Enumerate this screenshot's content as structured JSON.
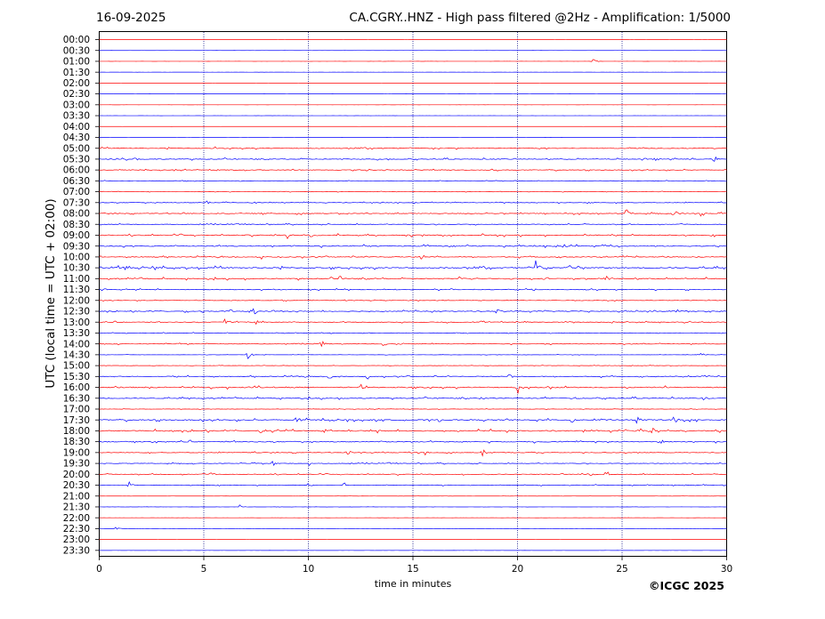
{
  "header": {
    "date": "16-09-2025",
    "title": "CA.CGRY..HNZ - High pass filtered @2Hz - Amplification: 1/5000"
  },
  "credit": "©ICGC 2025",
  "chart_data": {
    "type": "line",
    "title": "CA.CGRY..HNZ - High pass filtered @2Hz - Amplification: 1/5000",
    "xlabel": "time in minutes",
    "ylabel": "UTC (local time = UTC + 02:00)",
    "xlim": [
      0,
      30
    ],
    "xticks": [
      0,
      5,
      10,
      15,
      20,
      25,
      30
    ],
    "vertical_grid": [
      5,
      10,
      15,
      20,
      25
    ],
    "row_labels": [
      "00:00",
      "00:30",
      "01:00",
      "01:30",
      "02:00",
      "02:30",
      "03:00",
      "03:30",
      "04:00",
      "04:30",
      "05:00",
      "05:30",
      "06:00",
      "06:30",
      "07:00",
      "07:30",
      "08:00",
      "08:30",
      "09:00",
      "09:30",
      "10:00",
      "10:30",
      "11:00",
      "11:30",
      "12:00",
      "12:30",
      "13:00",
      "13:30",
      "14:00",
      "14:30",
      "15:00",
      "15:30",
      "16:00",
      "16:30",
      "17:00",
      "17:30",
      "18:00",
      "18:30",
      "19:00",
      "19:30",
      "20:00",
      "20:30",
      "21:00",
      "21:30",
      "22:00",
      "22:30",
      "23:00",
      "23:30"
    ],
    "trace_colors": [
      "#ff0000",
      "#0000ff"
    ],
    "noise_level": [
      0.02,
      0.02,
      0.03,
      0.02,
      0.02,
      0.02,
      0.02,
      0.02,
      0.02,
      0.02,
      0.35,
      0.35,
      0.3,
      0.15,
      0.15,
      0.25,
      0.35,
      0.25,
      0.45,
      0.45,
      0.35,
      0.55,
      0.45,
      0.3,
      0.2,
      0.35,
      0.3,
      0.2,
      0.25,
      0.1,
      0.15,
      0.35,
      0.5,
      0.4,
      0.15,
      0.5,
      0.5,
      0.45,
      0.3,
      0.25,
      0.3,
      0.25,
      0.05,
      0.05,
      0.04,
      0.04,
      0.02,
      0.02
    ],
    "events": [
      {
        "row": 2,
        "t": 23.6,
        "amp": 4
      },
      {
        "row": 10,
        "t": 5.5,
        "amp": 3
      },
      {
        "row": 11,
        "t": 1.7,
        "amp": 4
      },
      {
        "row": 11,
        "t": 26.5,
        "amp": 4
      },
      {
        "row": 11,
        "t": 29.4,
        "amp": 5
      },
      {
        "row": 12,
        "t": 12.8,
        "amp": 5
      },
      {
        "row": 13,
        "t": 4.6,
        "amp": 3
      },
      {
        "row": 15,
        "t": 5.1,
        "amp": 5
      },
      {
        "row": 15,
        "t": 23.3,
        "amp": 4
      },
      {
        "row": 16,
        "t": 25.2,
        "amp": 7
      },
      {
        "row": 16,
        "t": 27.5,
        "amp": 6
      },
      {
        "row": 16,
        "t": 28.8,
        "amp": 8
      },
      {
        "row": 18,
        "t": 9.0,
        "amp": 4
      },
      {
        "row": 19,
        "t": 16.8,
        "amp": 4
      },
      {
        "row": 19,
        "t": 22.2,
        "amp": 4
      },
      {
        "row": 19,
        "t": 24.0,
        "amp": 4
      },
      {
        "row": 20,
        "t": 7.7,
        "amp": 4
      },
      {
        "row": 20,
        "t": 15.4,
        "amp": 4
      },
      {
        "row": 21,
        "t": 0.9,
        "amp": 5
      },
      {
        "row": 21,
        "t": 20.9,
        "amp": 16
      },
      {
        "row": 21,
        "t": 22.4,
        "amp": 6
      },
      {
        "row": 21,
        "t": 23.1,
        "amp": 5
      },
      {
        "row": 22,
        "t": 11.5,
        "amp": 4
      },
      {
        "row": 22,
        "t": 17.2,
        "amp": 5
      },
      {
        "row": 22,
        "t": 24.2,
        "amp": 4
      },
      {
        "row": 23,
        "t": 20.7,
        "amp": 4
      },
      {
        "row": 25,
        "t": 6.3,
        "amp": 5
      },
      {
        "row": 25,
        "t": 7.4,
        "amp": 5
      },
      {
        "row": 25,
        "t": 19.0,
        "amp": 5
      },
      {
        "row": 25,
        "t": 27.6,
        "amp": 4
      },
      {
        "row": 26,
        "t": 6.0,
        "amp": 4
      },
      {
        "row": 26,
        "t": 7.5,
        "amp": 4
      },
      {
        "row": 26,
        "t": 18.3,
        "amp": 4
      },
      {
        "row": 26,
        "t": 24.5,
        "amp": 5
      },
      {
        "row": 28,
        "t": 10.6,
        "amp": 4
      },
      {
        "row": 28,
        "t": 13.6,
        "amp": 5
      },
      {
        "row": 29,
        "t": 7.1,
        "amp": 5
      },
      {
        "row": 29,
        "t": 28.7,
        "amp": 7
      },
      {
        "row": 31,
        "t": 11.0,
        "amp": 4
      },
      {
        "row": 31,
        "t": 12.8,
        "amp": 4
      },
      {
        "row": 31,
        "t": 19.6,
        "amp": 5
      },
      {
        "row": 32,
        "t": 12.5,
        "amp": 4
      },
      {
        "row": 32,
        "t": 20.0,
        "amp": 9
      },
      {
        "row": 33,
        "t": 18.2,
        "amp": 4
      },
      {
        "row": 33,
        "t": 22.8,
        "amp": 4
      },
      {
        "row": 33,
        "t": 28.9,
        "amp": 4
      },
      {
        "row": 35,
        "t": 9.4,
        "amp": 6
      },
      {
        "row": 35,
        "t": 22.6,
        "amp": 5
      },
      {
        "row": 35,
        "t": 25.7,
        "amp": 5
      },
      {
        "row": 35,
        "t": 27.5,
        "amp": 5
      },
      {
        "row": 36,
        "t": 7.8,
        "amp": 5
      },
      {
        "row": 36,
        "t": 13.3,
        "amp": 4
      },
      {
        "row": 36,
        "t": 25.8,
        "amp": 7
      },
      {
        "row": 36,
        "t": 26.3,
        "amp": 10
      },
      {
        "row": 37,
        "t": 26.8,
        "amp": 4
      },
      {
        "row": 38,
        "t": 15.5,
        "amp": 5
      },
      {
        "row": 38,
        "t": 18.3,
        "amp": 6
      },
      {
        "row": 38,
        "t": 11.9,
        "amp": 4
      },
      {
        "row": 39,
        "t": 8.3,
        "amp": 4
      },
      {
        "row": 39,
        "t": 10.0,
        "amp": 5
      },
      {
        "row": 40,
        "t": 5.3,
        "amp": 4
      },
      {
        "row": 40,
        "t": 23.4,
        "amp": 5
      },
      {
        "row": 40,
        "t": 24.2,
        "amp": 4
      },
      {
        "row": 41,
        "t": 1.4,
        "amp": 5
      },
      {
        "row": 41,
        "t": 10.0,
        "amp": 4
      },
      {
        "row": 41,
        "t": 11.7,
        "amp": 4
      },
      {
        "row": 43,
        "t": 6.7,
        "amp": 3
      },
      {
        "row": 45,
        "t": 0.8,
        "amp": 3
      }
    ]
  }
}
